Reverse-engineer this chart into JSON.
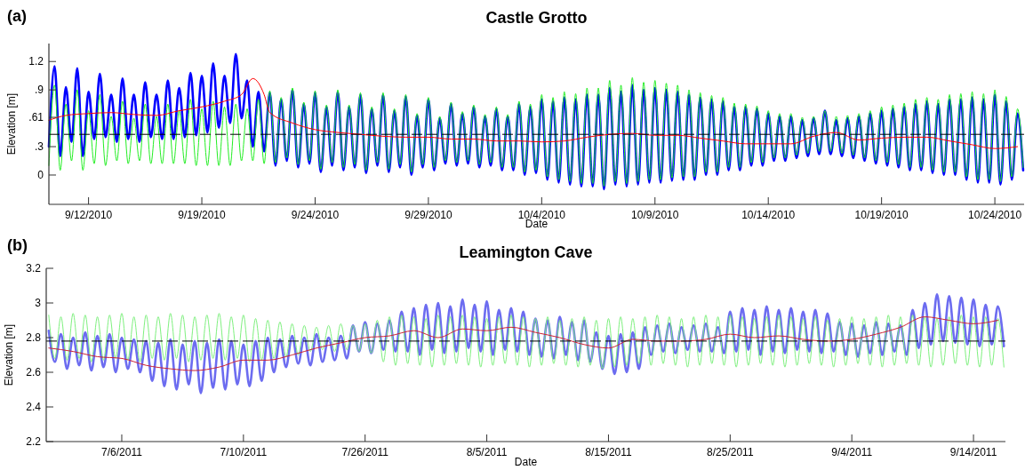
{
  "chart_data": [
    {
      "type": "line",
      "title": "Castle Grotto",
      "xlabel": "Date",
      "ylabel": "Elevation [m]",
      "annotations": [
        "(a)"
      ],
      "xlim": [
        "2010-09-12T06:00",
        "2010-10-25T07:00"
      ],
      "ylim": [
        -0.31,
        1.39
      ],
      "xticks": [
        {
          "value": "2010-09-14",
          "label": "9/12/2010"
        },
        {
          "value": "2010-09-19",
          "label": "9/19/2010"
        },
        {
          "value": "2010-09-24",
          "label": "9/24/2010"
        },
        {
          "value": "2010-09-29",
          "label": "9/29/2010"
        },
        {
          "value": "2010-10-04",
          "label": "10/4/2010"
        },
        {
          "value": "2010-10-09",
          "label": "10/9/2010"
        },
        {
          "value": "2010-10-14",
          "label": "10/14/2010"
        },
        {
          "value": "2010-10-19",
          "label": "10/19/2010"
        },
        {
          "value": "2010-10-24",
          "label": "10/24/2010"
        }
      ],
      "yticks": [
        0,
        {
          "value": 0.3,
          "label": ".3"
        },
        {
          "value": 0.61,
          "label": ".61"
        },
        {
          "value": 0.9,
          "label": ".9"
        },
        1.2
      ],
      "ref_lines": [
        {
          "axis": "y",
          "value": 0.43,
          "color": "#000000",
          "line_style": "dashed"
        }
      ],
      "x": [
        "2010-09-12T06:00",
        "2010-09-12T12:00",
        "2010-09-12T18:00",
        "2010-09-13T00:00",
        "2010-09-13T06:00",
        "2010-09-13T12:00",
        "2010-09-13T18:00",
        "2010-09-14T00:00",
        "2010-09-14T06:00",
        "2010-09-14T12:00",
        "2010-09-14T18:00",
        "2010-09-15T00:00",
        "2010-09-15T06:00",
        "2010-09-15T12:00",
        "2010-09-15T18:00",
        "2010-09-16T00:00",
        "2010-09-16T06:00",
        "2010-09-16T12:00",
        "2010-09-16T18:00",
        "2010-09-17T00:00",
        "2010-09-17T06:00",
        "2010-09-17T12:00",
        "2010-09-17T18:00",
        "2010-09-18T00:00",
        "2010-09-18T06:00",
        "2010-09-18T12:00",
        "2010-09-18T18:00",
        "2010-09-19T00:00",
        "2010-09-19T06:00",
        "2010-09-19T12:00",
        "2010-09-19T18:00",
        "2010-09-20T00:00",
        "2010-09-20T06:00",
        "2010-09-20T12:00",
        "2010-09-20T18:00",
        "2010-09-21T00:00",
        "2010-09-21T06:00",
        "2010-09-21T12:00",
        "2010-09-21T18:00",
        "2010-09-22T00:00",
        "2010-09-22T06:00",
        "2010-09-22T12:00",
        "2010-09-22T18:00",
        "2010-09-23T00:00",
        "2010-09-23T06:00",
        "2010-09-23T12:00",
        "2010-09-23T18:00",
        "2010-09-24T00:00",
        "2010-09-24T06:00",
        "2010-09-24T12:00",
        "2010-09-24T18:00",
        "2010-09-25T00:00",
        "2010-09-25T06:00",
        "2010-09-25T12:00",
        "2010-09-25T18:00",
        "2010-09-26T00:00",
        "2010-09-26T06:00",
        "2010-09-26T12:00",
        "2010-09-26T18:00",
        "2010-09-27T00:00",
        "2010-09-27T06:00",
        "2010-09-27T12:00",
        "2010-09-27T18:00",
        "2010-09-28T00:00",
        "2010-09-28T06:00",
        "2010-09-28T12:00",
        "2010-09-28T18:00",
        "2010-09-29T00:00",
        "2010-09-29T06:00",
        "2010-09-29T12:00",
        "2010-09-29T18:00",
        "2010-09-30T00:00",
        "2010-09-30T06:00",
        "2010-09-30T12:00",
        "2010-09-30T18:00",
        "2010-10-01T00:00",
        "2010-10-01T06:00",
        "2010-10-01T12:00",
        "2010-10-01T18:00",
        "2010-10-02T00:00",
        "2010-10-02T06:00",
        "2010-10-02T12:00",
        "2010-10-02T18:00",
        "2010-10-03T00:00",
        "2010-10-03T06:00",
        "2010-10-03T12:00",
        "2010-10-03T18:00",
        "2010-10-04T00:00",
        "2010-10-04T06:00",
        "2010-10-04T12:00",
        "2010-10-04T18:00",
        "2010-10-05T00:00",
        "2010-10-05T06:00",
        "2010-10-05T12:00",
        "2010-10-05T18:00",
        "2010-10-06T00:00",
        "2010-10-06T06:00",
        "2010-10-06T12:00",
        "2010-10-06T18:00",
        "2010-10-07T00:00",
        "2010-10-07T06:00",
        "2010-10-07T12:00",
        "2010-10-07T18:00",
        "2010-10-08T00:00",
        "2010-10-08T06:00",
        "2010-10-08T12:00",
        "2010-10-08T18:00",
        "2010-10-09T00:00",
        "2010-10-09T06:00",
        "2010-10-09T12:00",
        "2010-10-09T18:00",
        "2010-10-10T00:00",
        "2010-10-10T06:00",
        "2010-10-10T12:00",
        "2010-10-10T18:00",
        "2010-10-11T00:00",
        "2010-10-11T06:00",
        "2010-10-11T12:00",
        "2010-10-11T18:00",
        "2010-10-12T00:00",
        "2010-10-12T06:00",
        "2010-10-12T12:00",
        "2010-10-12T18:00",
        "2010-10-13T00:00",
        "2010-10-13T06:00",
        "2010-10-13T12:00",
        "2010-10-13T18:00",
        "2010-10-14T00:00",
        "2010-10-14T06:00",
        "2010-10-14T12:00",
        "2010-10-14T18:00",
        "2010-10-15T00:00",
        "2010-10-15T06:00",
        "2010-10-15T12:00",
        "2010-10-15T18:00",
        "2010-10-16T00:00",
        "2010-10-16T06:00",
        "2010-10-16T12:00",
        "2010-10-16T18:00",
        "2010-10-17T00:00",
        "2010-10-17T06:00",
        "2010-10-17T12:00",
        "2010-10-17T18:00",
        "2010-10-18T00:00",
        "2010-10-18T06:00",
        "2010-10-18T12:00",
        "2010-10-18T18:00",
        "2010-10-19T00:00",
        "2010-10-19T06:00",
        "2010-10-19T12:00",
        "2010-10-19T18:00",
        "2010-10-20T00:00",
        "2010-10-20T06:00",
        "2010-10-20T12:00",
        "2010-10-20T18:00",
        "2010-10-21T00:00",
        "2010-10-21T06:00",
        "2010-10-21T12:00",
        "2010-10-21T18:00",
        "2010-10-22T00:00",
        "2010-10-22T06:00",
        "2010-10-22T12:00",
        "2010-10-22T18:00",
        "2010-10-23T00:00",
        "2010-10-23T06:00",
        "2010-10-23T12:00",
        "2010-10-23T18:00",
        "2010-10-24T00:00",
        "2010-10-24T06:00",
        "2010-10-24T12:00",
        "2010-10-24T18:00",
        "2010-10-25T00:00",
        "2010-10-25T06:00"
      ],
      "series": [
        {
          "color": "#0000ff",
          "values": [
            0.3,
            1.15,
            0.2,
            0.93,
            0.35,
            1.13,
            0.2,
            0.88,
            0.38,
            1.07,
            0.4,
            0.85,
            0.35,
            1.02,
            0.38,
            0.85,
            0.35,
            0.98,
            0.4,
            0.85,
            0.38,
            1.0,
            0.38,
            0.92,
            0.4,
            1.08,
            0.42,
            1.05,
            0.45,
            1.18,
            0.5,
            1.05,
            0.55,
            1.28,
            0.6,
            1.0,
            0.3,
            0.88,
            0.25,
            0.87,
            0.1,
            0.8,
            0.15,
            0.9,
            0.08,
            0.75,
            0.12,
            0.87,
            0.03,
            0.72,
            0.1,
            0.88,
            0.05,
            0.72,
            0.08,
            0.85,
            0.02,
            0.7,
            0.1,
            0.85,
            0.03,
            0.68,
            0.08,
            0.83,
            0.0,
            0.63,
            0.08,
            0.8,
            0.05,
            0.6,
            0.12,
            0.75,
            0.1,
            0.65,
            0.12,
            0.72,
            0.08,
            0.62,
            0.1,
            0.7,
            0.05,
            0.62,
            0.05,
            0.75,
            0.0,
            0.72,
            0.02,
            0.8,
            -0.05,
            0.78,
            -0.08,
            0.82,
            -0.1,
            0.8,
            -0.12,
            0.85,
            -0.12,
            0.85,
            -0.15,
            0.92,
            -0.1,
            0.88,
            -0.12,
            0.95,
            -0.1,
            0.9,
            -0.08,
            0.92,
            -0.08,
            0.9,
            -0.06,
            0.88,
            -0.05,
            0.85,
            -0.05,
            0.82,
            0.0,
            0.8,
            0.0,
            0.78,
            0.05,
            0.72,
            0.05,
            0.72,
            0.1,
            0.7,
            0.1,
            0.65,
            0.15,
            0.62,
            0.15,
            0.62,
            0.18,
            0.58,
            0.2,
            0.6,
            0.22,
            0.68,
            0.22,
            0.58,
            0.2,
            0.6,
            0.18,
            0.62,
            0.15,
            0.65,
            0.12,
            0.68,
            0.1,
            0.7,
            0.08,
            0.72,
            0.05,
            0.75,
            0.05,
            0.78,
            0.02,
            0.75,
            0.0,
            0.8,
            0.0,
            0.8,
            -0.05,
            0.82,
            -0.08,
            0.8,
            -0.08,
            0.85,
            -0.1,
            0.78,
            -0.05,
            0.65,
            0.05
          ]
        },
        {
          "color": "#22ee22",
          "values": [
            0.1,
            0.95,
            0.05,
            0.75,
            0.15,
            0.9,
            0.05,
            0.68,
            0.12,
            0.85,
            0.1,
            0.62,
            0.15,
            0.78,
            0.12,
            0.6,
            0.15,
            0.75,
            0.12,
            0.62,
            0.12,
            0.75,
            0.12,
            0.68,
            0.12,
            0.8,
            0.1,
            0.7,
            0.1,
            0.78,
            0.1,
            0.72,
            0.1,
            0.75,
            0.15,
            0.7,
            0.15,
            0.8,
            0.12,
            0.89,
            0.13,
            0.82,
            0.18,
            0.92,
            0.11,
            0.77,
            0.15,
            0.89,
            0.06,
            0.74,
            0.13,
            0.9,
            0.08,
            0.74,
            0.11,
            0.87,
            0.05,
            0.72,
            0.13,
            0.87,
            0.06,
            0.7,
            0.11,
            0.85,
            0.03,
            0.65,
            0.11,
            0.82,
            0.08,
            0.62,
            0.15,
            0.77,
            0.13,
            0.67,
            0.15,
            0.74,
            0.11,
            0.64,
            0.13,
            0.72,
            0.08,
            0.64,
            0.08,
            0.78,
            0.03,
            0.75,
            0.05,
            0.85,
            -0.02,
            0.82,
            -0.05,
            0.88,
            -0.07,
            0.86,
            -0.09,
            0.92,
            -0.09,
            0.92,
            -0.12,
            1.0,
            -0.07,
            0.95,
            -0.09,
            1.03,
            -0.07,
            0.98,
            -0.05,
            1.0,
            -0.05,
            0.97,
            -0.03,
            0.95,
            -0.02,
            0.9,
            -0.02,
            0.87,
            0.03,
            0.84,
            0.03,
            0.82,
            0.08,
            0.76,
            0.08,
            0.75,
            0.13,
            0.73,
            0.13,
            0.68,
            0.18,
            0.65,
            0.18,
            0.65,
            0.21,
            0.61,
            0.23,
            0.62,
            0.25,
            0.68,
            0.25,
            0.62,
            0.23,
            0.63,
            0.21,
            0.65,
            0.18,
            0.68,
            0.15,
            0.72,
            0.13,
            0.74,
            0.11,
            0.76,
            0.08,
            0.8,
            0.08,
            0.82,
            0.05,
            0.8,
            0.03,
            0.85,
            0.03,
            0.86,
            -0.02,
            0.88,
            -0.05,
            0.86,
            -0.05,
            0.9,
            -0.07,
            0.83,
            -0.02,
            0.7,
            0.08
          ]
        },
        {
          "color": "#ff0000",
          "x": [
            "2010-09-12T06:00",
            "2010-09-13",
            "2010-09-14",
            "2010-09-15",
            "2010-09-16",
            "2010-09-17",
            "2010-09-18",
            "2010-09-19",
            "2010-09-20",
            "2010-09-20T18:00",
            "2010-09-21T06:00",
            "2010-09-21T18:00",
            "2010-09-22",
            "2010-09-23",
            "2010-09-24",
            "2010-09-25",
            "2010-09-26",
            "2010-09-27",
            "2010-09-28",
            "2010-09-29",
            "2010-09-30",
            "2010-10-01",
            "2010-10-02",
            "2010-10-03",
            "2010-10-04",
            "2010-10-05",
            "2010-10-06",
            "2010-10-07",
            "2010-10-08",
            "2010-10-09",
            "2010-10-10",
            "2010-10-11",
            "2010-10-12",
            "2010-10-13",
            "2010-10-14",
            "2010-10-15",
            "2010-10-16",
            "2010-10-17",
            "2010-10-18",
            "2010-10-19",
            "2010-10-20",
            "2010-10-21",
            "2010-10-22",
            "2010-10-23",
            "2010-10-24",
            "2010-10-25"
          ],
          "values": [
            0.58,
            0.63,
            0.65,
            0.66,
            0.64,
            0.63,
            0.68,
            0.72,
            0.78,
            0.85,
            1.02,
            0.85,
            0.66,
            0.55,
            0.48,
            0.45,
            0.43,
            0.41,
            0.4,
            0.4,
            0.38,
            0.38,
            0.36,
            0.36,
            0.35,
            0.36,
            0.4,
            0.43,
            0.44,
            0.42,
            0.42,
            0.39,
            0.36,
            0.33,
            0.33,
            0.33,
            0.41,
            0.45,
            0.37,
            0.39,
            0.4,
            0.4,
            0.36,
            0.32,
            0.28,
            0.3
          ]
        }
      ]
    },
    {
      "type": "line",
      "title": "Leamington Cave",
      "xlabel": "Date",
      "ylabel": "Elevation [m]",
      "annotations": [
        "(b)"
      ],
      "xlim": [
        "2011-06-29T19:00",
        "2011-09-16T15:00"
      ],
      "ylim": [
        2.2,
        3.2
      ],
      "xticks": [
        {
          "value": "2011-07-06",
          "label": "7/6/2011"
        },
        {
          "value": "2011-07-16",
          "label": "7/10/2011"
        },
        {
          "value": "2011-07-26",
          "label": "7/26/2011"
        },
        {
          "value": "2011-08-05",
          "label": "8/5/2011"
        },
        {
          "value": "2011-08-15",
          "label": "8/15/2011"
        },
        {
          "value": "2011-08-25",
          "label": "8/25/2011"
        },
        {
          "value": "2011-09-04",
          "label": "9/4/2011"
        },
        {
          "value": "2011-09-14",
          "label": "9/14/2011"
        }
      ],
      "yticks": [
        2.2,
        2.4,
        2.6,
        2.8,
        3,
        3.2
      ],
      "ref_lines": [
        {
          "axis": "y",
          "value": 2.78,
          "color": "#000000",
          "line_style": "dashed"
        }
      ],
      "x": [
        "2011-06-30T00:00",
        "2011-06-30T12:00",
        "2011-07-01T00:00",
        "2011-07-01T12:00",
        "2011-07-02T00:00",
        "2011-07-02T12:00",
        "2011-07-03T00:00",
        "2011-07-03T12:00",
        "2011-07-04T00:00",
        "2011-07-04T12:00",
        "2011-07-05T00:00",
        "2011-07-05T12:00",
        "2011-07-06T00:00",
        "2011-07-06T12:00",
        "2011-07-07T00:00",
        "2011-07-07T12:00",
        "2011-07-08T00:00",
        "2011-07-08T12:00",
        "2011-07-09T00:00",
        "2011-07-09T12:00",
        "2011-07-10T00:00",
        "2011-07-10T12:00",
        "2011-07-11T00:00",
        "2011-07-11T12:00",
        "2011-07-12T00:00",
        "2011-07-12T12:00",
        "2011-07-13T00:00",
        "2011-07-13T12:00",
        "2011-07-14T00:00",
        "2011-07-14T12:00",
        "2011-07-15T00:00",
        "2011-07-15T12:00",
        "2011-07-16T00:00",
        "2011-07-16T12:00",
        "2011-07-17T00:00",
        "2011-07-17T12:00",
        "2011-07-18T00:00",
        "2011-07-18T12:00",
        "2011-07-19T00:00",
        "2011-07-19T12:00",
        "2011-07-20T00:00",
        "2011-07-20T12:00",
        "2011-07-21T00:00",
        "2011-07-21T12:00",
        "2011-07-22T00:00",
        "2011-07-22T12:00",
        "2011-07-23T00:00",
        "2011-07-23T12:00",
        "2011-07-24T00:00",
        "2011-07-24T12:00",
        "2011-07-25T00:00",
        "2011-07-25T12:00",
        "2011-07-26T00:00",
        "2011-07-26T12:00",
        "2011-07-27T00:00",
        "2011-07-27T12:00",
        "2011-07-28T00:00",
        "2011-07-28T12:00",
        "2011-07-29T00:00",
        "2011-07-29T12:00",
        "2011-07-30T00:00",
        "2011-07-30T12:00",
        "2011-07-31T00:00",
        "2011-07-31T12:00",
        "2011-08-01T00:00",
        "2011-08-01T12:00",
        "2011-08-02T00:00",
        "2011-08-02T12:00",
        "2011-08-03T00:00",
        "2011-08-03T12:00",
        "2011-08-04T00:00",
        "2011-08-04T12:00",
        "2011-08-05T00:00",
        "2011-08-05T12:00",
        "2011-08-06T00:00",
        "2011-08-06T12:00",
        "2011-08-07T00:00",
        "2011-08-07T12:00",
        "2011-08-08T00:00",
        "2011-08-08T12:00",
        "2011-08-09T00:00",
        "2011-08-09T12:00",
        "2011-08-10T00:00",
        "2011-08-10T12:00",
        "2011-08-11T00:00",
        "2011-08-11T12:00",
        "2011-08-12T00:00",
        "2011-08-12T12:00",
        "2011-08-13T00:00",
        "2011-08-13T12:00",
        "2011-08-14T00:00",
        "2011-08-14T12:00",
        "2011-08-15T00:00",
        "2011-08-15T12:00",
        "2011-08-16T00:00",
        "2011-08-16T12:00",
        "2011-08-17T00:00",
        "2011-08-17T12:00",
        "2011-08-18T00:00",
        "2011-08-18T12:00",
        "2011-08-19T00:00",
        "2011-08-19T12:00",
        "2011-08-20T00:00",
        "2011-08-20T12:00",
        "2011-08-21T00:00",
        "2011-08-21T12:00",
        "2011-08-22T00:00",
        "2011-08-22T12:00",
        "2011-08-23T00:00",
        "2011-08-23T12:00",
        "2011-08-24T00:00",
        "2011-08-24T12:00",
        "2011-08-25T00:00",
        "2011-08-25T12:00",
        "2011-08-26T00:00",
        "2011-08-26T12:00",
        "2011-08-27T00:00",
        "2011-08-27T12:00",
        "2011-08-28T00:00",
        "2011-08-28T12:00",
        "2011-08-29T00:00",
        "2011-08-29T12:00",
        "2011-08-30T00:00",
        "2011-08-30T12:00",
        "2011-08-31T00:00",
        "2011-08-31T12:00",
        "2011-09-01T00:00",
        "2011-09-01T12:00",
        "2011-09-02T00:00",
        "2011-09-02T12:00",
        "2011-09-03T00:00",
        "2011-09-03T12:00",
        "2011-09-04T00:00",
        "2011-09-04T12:00",
        "2011-09-05T00:00",
        "2011-09-05T12:00",
        "2011-09-06T00:00",
        "2011-09-06T12:00",
        "2011-09-07T00:00",
        "2011-09-07T12:00",
        "2011-09-08T00:00",
        "2011-09-08T12:00",
        "2011-09-09T00:00",
        "2011-09-09T12:00",
        "2011-09-10T00:00",
        "2011-09-10T12:00",
        "2011-09-11T00:00",
        "2011-09-11T12:00",
        "2011-09-12T00:00",
        "2011-09-12T12:00",
        "2011-09-13T00:00",
        "2011-09-13T12:00",
        "2011-09-14T00:00",
        "2011-09-14T12:00",
        "2011-09-15T00:00",
        "2011-09-15T12:00",
        "2011-09-16T00:00",
        "2011-09-16T12:00"
      ],
      "series": [
        {
          "color": "#6c6cf0",
          "values": [
            2.84,
            2.66,
            2.82,
            2.62,
            2.8,
            2.64,
            2.83,
            2.61,
            2.81,
            2.63,
            2.82,
            2.6,
            2.8,
            2.62,
            2.79,
            2.6,
            2.78,
            2.55,
            2.77,
            2.52,
            2.79,
            2.5,
            2.76,
            2.53,
            2.78,
            2.48,
            2.77,
            2.51,
            2.79,
            2.5,
            2.78,
            2.53,
            2.76,
            2.52,
            2.78,
            2.55,
            2.8,
            2.6,
            2.79,
            2.63,
            2.81,
            2.65,
            2.8,
            2.64,
            2.82,
            2.66,
            2.8,
            2.67,
            2.81,
            2.68,
            2.87,
            2.72,
            2.89,
            2.71,
            2.88,
            2.73,
            2.9,
            2.72,
            2.95,
            2.72,
            2.97,
            2.7,
            2.99,
            2.73,
            3.0,
            2.71,
            2.98,
            2.72,
            3.02,
            2.74,
            2.99,
            2.72,
            3.01,
            2.7,
            2.96,
            2.73,
            2.97,
            2.72,
            2.95,
            2.7,
            2.91,
            2.69,
            2.9,
            2.68,
            2.92,
            2.7,
            2.89,
            2.67,
            2.9,
            2.66,
            2.83,
            2.62,
            2.81,
            2.59,
            2.82,
            2.6,
            2.83,
            2.62,
            2.86,
            2.7,
            2.87,
            2.72,
            2.88,
            2.71,
            2.86,
            2.73,
            2.87,
            2.72,
            2.88,
            2.72,
            2.86,
            2.71,
            2.95,
            2.72,
            2.97,
            2.73,
            2.96,
            2.7,
            2.98,
            2.72,
            2.96,
            2.71,
            2.97,
            2.73,
            2.95,
            2.72,
            2.96,
            2.71,
            2.94,
            2.72,
            2.89,
            2.7,
            2.88,
            2.69,
            2.87,
            2.71,
            2.89,
            2.7,
            2.88,
            2.72,
            2.87,
            2.7,
            2.96,
            2.74,
            3.0,
            2.76,
            3.05,
            2.78,
            3.04,
            2.77,
            3.03,
            2.76,
            3.02,
            2.75,
            2.99,
            2.76,
            2.98,
            2.75
          ]
        },
        {
          "color": "#7ef07e",
          "values": [
            2.93,
            2.68,
            2.92,
            2.67,
            2.94,
            2.68,
            2.93,
            2.66,
            2.92,
            2.67,
            2.93,
            2.68,
            2.94,
            2.67,
            2.92,
            2.66,
            2.93,
            2.68,
            2.92,
            2.67,
            2.94,
            2.68,
            2.93,
            2.66,
            2.92,
            2.67,
            2.93,
            2.68,
            2.94,
            2.67,
            2.92,
            2.68,
            2.93,
            2.66,
            2.91,
            2.67,
            2.9,
            2.68,
            2.89,
            2.69,
            2.88,
            2.7,
            2.87,
            2.72,
            2.86,
            2.73,
            2.87,
            2.72,
            2.88,
            2.73,
            2.87,
            2.72,
            2.88,
            2.71,
            2.9,
            2.66,
            2.92,
            2.64,
            2.93,
            2.65,
            2.92,
            2.64,
            2.91,
            2.63,
            2.93,
            2.64,
            2.92,
            2.65,
            2.93,
            2.64,
            2.92,
            2.63,
            2.91,
            2.64,
            2.92,
            2.65,
            2.93,
            2.64,
            2.92,
            2.63,
            2.91,
            2.64,
            2.92,
            2.65,
            2.9,
            2.64,
            2.91,
            2.63,
            2.92,
            2.64,
            2.9,
            2.62,
            2.91,
            2.63,
            2.92,
            2.64,
            2.91,
            2.65,
            2.92,
            2.64,
            2.93,
            2.65,
            2.92,
            2.64,
            2.91,
            2.63,
            2.92,
            2.64,
            2.93,
            2.65,
            2.92,
            2.64,
            2.93,
            2.63,
            2.92,
            2.64,
            2.91,
            2.65,
            2.92,
            2.64,
            2.93,
            2.63,
            2.92,
            2.64,
            2.91,
            2.65,
            2.92,
            2.64,
            2.9,
            2.63,
            2.91,
            2.64,
            2.92,
            2.65,
            2.91,
            2.64,
            2.92,
            2.63,
            2.93,
            2.64,
            2.92,
            2.65,
            2.93,
            2.64,
            2.92,
            2.63,
            2.91,
            2.64,
            2.92,
            2.65,
            2.93,
            2.64,
            2.92,
            2.63,
            2.92,
            2.64,
            2.91,
            2.63
          ]
        },
        {
          "color": "#cc2233",
          "x": [
            "2011-06-30",
            "2011-07-02",
            "2011-07-04",
            "2011-07-06",
            "2011-07-08",
            "2011-07-10",
            "2011-07-12",
            "2011-07-14",
            "2011-07-16",
            "2011-07-18",
            "2011-07-20",
            "2011-07-22",
            "2011-07-24",
            "2011-07-26",
            "2011-07-28",
            "2011-07-30",
            "2011-08-01",
            "2011-08-03",
            "2011-08-05",
            "2011-08-07",
            "2011-08-09",
            "2011-08-11",
            "2011-08-13",
            "2011-08-15",
            "2011-08-17",
            "2011-08-19",
            "2011-08-21",
            "2011-08-23",
            "2011-08-25",
            "2011-08-27",
            "2011-08-29",
            "2011-08-31",
            "2011-09-02",
            "2011-09-04",
            "2011-09-06",
            "2011-09-08",
            "2011-09-10",
            "2011-09-12",
            "2011-09-14",
            "2011-09-16"
          ],
          "values": [
            2.74,
            2.72,
            2.69,
            2.68,
            2.64,
            2.62,
            2.61,
            2.63,
            2.67,
            2.67,
            2.7,
            2.74,
            2.77,
            2.8,
            2.81,
            2.84,
            2.8,
            2.85,
            2.84,
            2.86,
            2.83,
            2.8,
            2.76,
            2.74,
            2.79,
            2.78,
            2.78,
            2.79,
            2.82,
            2.8,
            2.81,
            2.79,
            2.78,
            2.79,
            2.82,
            2.86,
            2.92,
            2.9,
            2.88,
            2.9
          ]
        }
      ]
    }
  ]
}
